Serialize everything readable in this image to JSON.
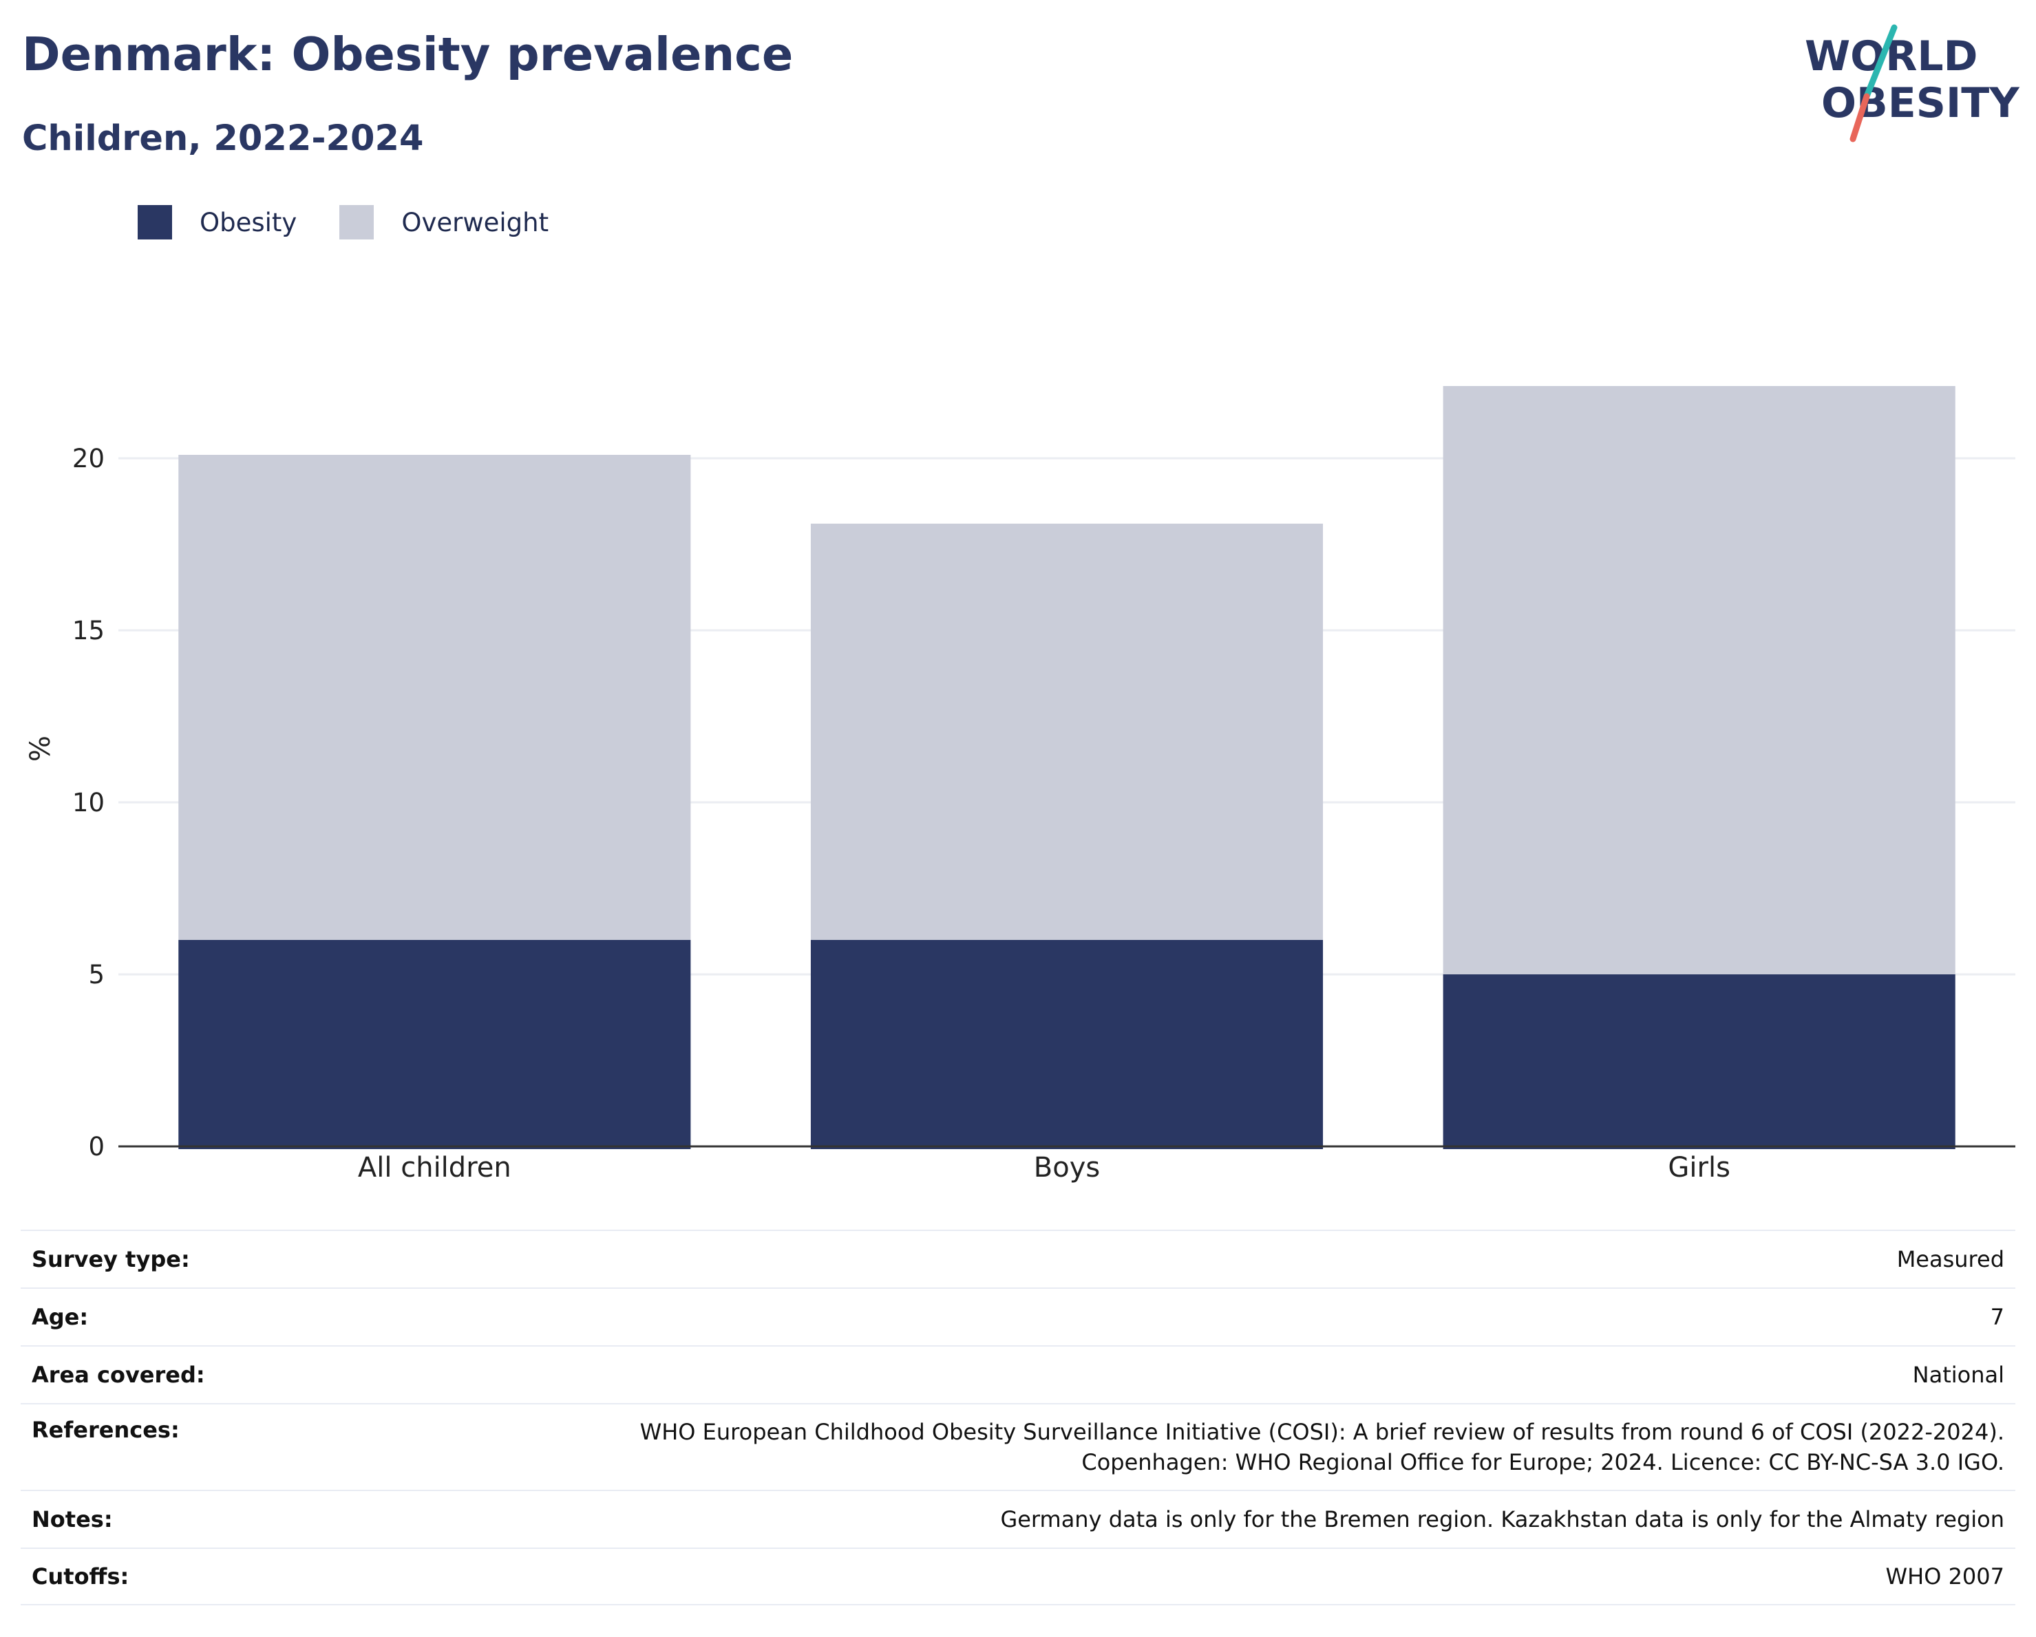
{
  "title": "Denmark: Obesity prevalence",
  "subtitle": "Children, 2022-2024",
  "logo": {
    "line1": "WORLD",
    "line2": "OBESITY",
    "colors": {
      "text": "#2a3763",
      "slash_top": "#2bb6b0",
      "slash_bottom": "#e8665a"
    }
  },
  "colors": {
    "obesity": "#2a3763",
    "overweight": "#cacdd9",
    "grid": "#ebedf2",
    "axis": "#333333"
  },
  "chart_data": {
    "type": "bar",
    "stacked": true,
    "categories": [
      "All children",
      "Boys",
      "Girls"
    ],
    "series": [
      {
        "name": "Obesity",
        "values": [
          6,
          6,
          5
        ]
      },
      {
        "name": "Overweight",
        "values": [
          14.1,
          12.1,
          17.1
        ]
      }
    ],
    "totals": [
      20.1,
      18.1,
      22.1
    ],
    "ylabel": "%",
    "xlabel": "",
    "ylim": [
      0,
      23
    ],
    "yticks": [
      0,
      5,
      10,
      15,
      20
    ],
    "grid": true,
    "legend_position": "top-left"
  },
  "info": [
    {
      "label": "Survey type:",
      "value": "Measured"
    },
    {
      "label": "Age:",
      "value": "7"
    },
    {
      "label": "Area covered:",
      "value": "National"
    },
    {
      "label": "References:",
      "value": "WHO European Childhood Obesity Surveillance Initiative (COSI): A brief review of results from round 6 of COSI (2022-2024). Copenhagen: WHO Regional Office for Europe; 2024. Licence: CC BY-NC-SA 3.0 IGO."
    },
    {
      "label": "Notes:",
      "value": "Germany data is only for the Bremen region. Kazakhstan data is only for the Almaty region"
    },
    {
      "label": "Cutoffs:",
      "value": "WHO 2007"
    }
  ]
}
